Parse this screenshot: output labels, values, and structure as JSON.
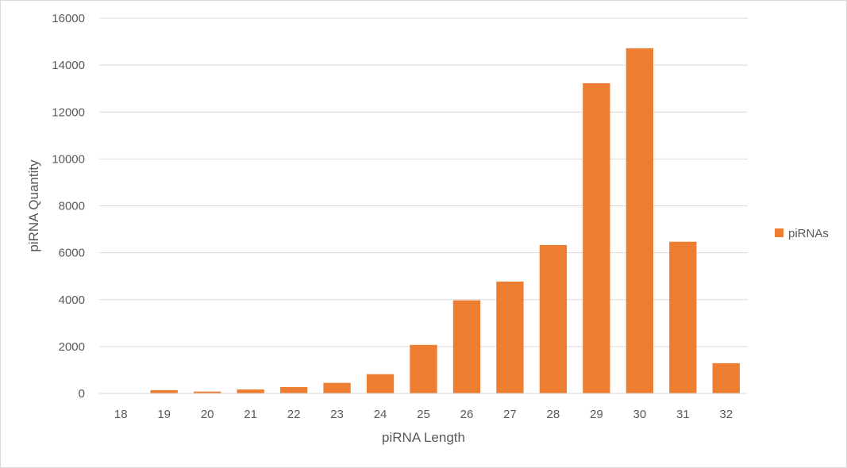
{
  "chart_data": {
    "type": "bar",
    "title": "",
    "xlabel": "piRNA Length",
    "ylabel": "piRNA Quantity",
    "categories": [
      "18",
      "19",
      "20",
      "21",
      "22",
      "23",
      "24",
      "25",
      "26",
      "27",
      "28",
      "29",
      "30",
      "31",
      "32"
    ],
    "series": [
      {
        "name": "piRNAs",
        "color": "#ED7D31",
        "values": [
          10,
          140,
          80,
          170,
          270,
          450,
          820,
          2070,
          3970,
          4770,
          6330,
          13230,
          14720,
          6470,
          1290
        ]
      }
    ],
    "ylim": [
      0,
      16000
    ],
    "yticks": [
      "0",
      "2000",
      "4000",
      "6000",
      "8000",
      "10000",
      "12000",
      "14000",
      "16000"
    ],
    "grid": true,
    "legend": "right"
  }
}
